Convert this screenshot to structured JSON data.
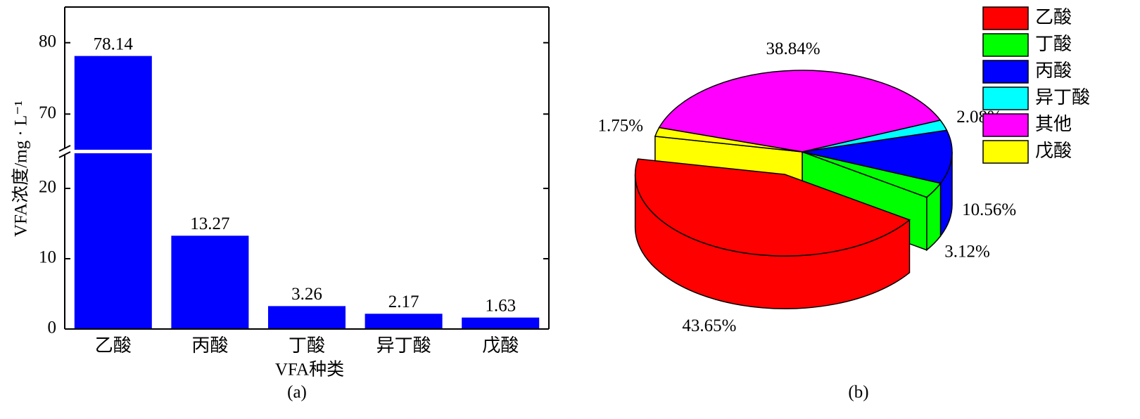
{
  "chart_data": [
    {
      "type": "bar",
      "caption": "(a)",
      "xlabel": "VFA种类",
      "ylabel": "VFA浓度/mg · L⁻¹",
      "categories": [
        "乙酸",
        "丙酸",
        "丁酸",
        "异丁酸",
        "戊酸"
      ],
      "values": [
        78.14,
        13.27,
        3.26,
        2.17,
        1.63
      ],
      "color": "#0000ff",
      "ylim": [
        0,
        85
      ],
      "ybreak": [
        25,
        65
      ],
      "yticks": [
        0,
        10,
        20,
        70,
        80
      ]
    },
    {
      "type": "pie3d",
      "caption": "(b)",
      "categories": [
        "乙酸",
        "丁酸",
        "丙酸",
        "异丁酸",
        "其他",
        "戊酸"
      ],
      "values": [
        43.65,
        3.12,
        10.56,
        2.08,
        38.84,
        1.75
      ],
      "value_labels": [
        "43.65%",
        "3.12%",
        "10.56%",
        "2.08%",
        "38.84%",
        "1.75%"
      ],
      "colors": [
        "#ff0000",
        "#00ff00",
        "#0000ff",
        "#00ffff",
        "#ff00ff",
        "#ffff00"
      ],
      "explode": [
        true,
        false,
        false,
        false,
        false,
        false
      ]
    }
  ]
}
